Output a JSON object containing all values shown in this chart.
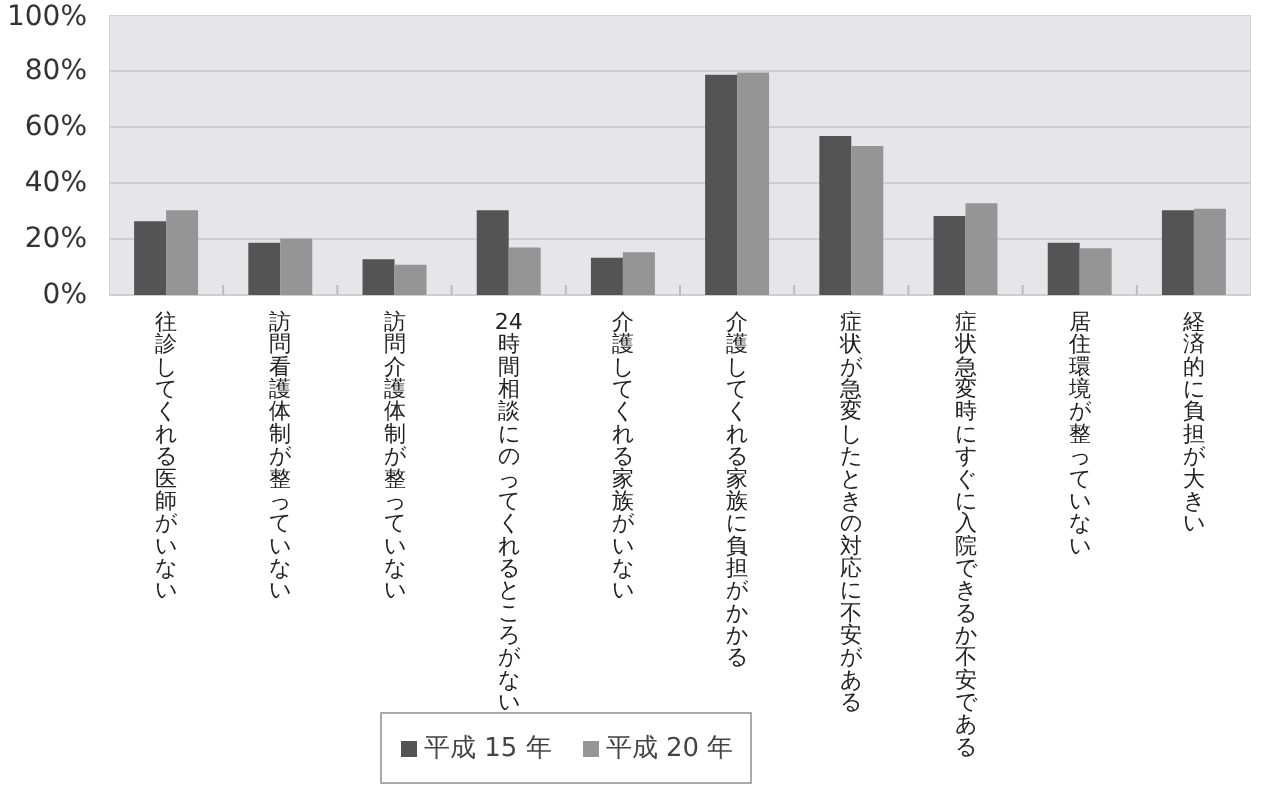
{
  "chart_data": {
    "type": "bar",
    "categories": [
      "往診してくれる医師がいない",
      "訪問看護体制が整っていない",
      "訪問介護体制が整っていない",
      "24時間相談にのってくれるところがない",
      "介護してくれる家族がいない",
      "介護してくれる家族に負担がかかる",
      "症状が急変したときの対応に不安がある",
      "症状急変時にすぐに入院できるか不安である",
      "居住環境が整っていない",
      "経済的に負担が大きい"
    ],
    "series": [
      {
        "name": "平成 15 年",
        "color": "#545454",
        "values": [
          26.3,
          18.7,
          12.8,
          30.3,
          13.3,
          78.7,
          56.8,
          28.2,
          18.7,
          30.3
        ]
      },
      {
        "name": "平成 20 年",
        "color": "#959595",
        "values": [
          30.3,
          20.2,
          10.8,
          17,
          15.3,
          79.5,
          53.2,
          32.8,
          16.7,
          30.8
        ]
      }
    ],
    "ylim": [
      0,
      100
    ],
    "yticks": [
      {
        "value": 0,
        "label": "0%"
      },
      {
        "value": 20,
        "label": "20%"
      },
      {
        "value": 40,
        "label": "40%"
      },
      {
        "value": 60,
        "label": "60%"
      },
      {
        "value": 80,
        "label": "80%"
      },
      {
        "value": 100,
        "label": "100%"
      }
    ],
    "grid": "y",
    "legend": "bottom",
    "tick_labels": "y"
  }
}
